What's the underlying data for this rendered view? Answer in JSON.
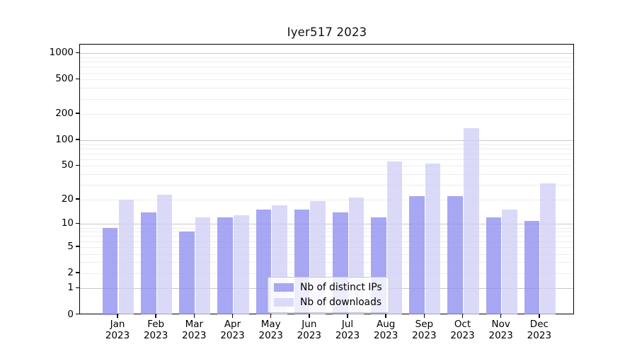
{
  "title": "Iyer517 2023",
  "chart_data": {
    "type": "bar",
    "title": "Iyer517 2023",
    "xlabel": "",
    "ylabel": "",
    "scale": "log10(1+x)",
    "grid": true,
    "legend_position": "lower center",
    "ylim": [
      0,
      1270
    ],
    "y_ticks": [
      0,
      1,
      2,
      5,
      10,
      20,
      50,
      100,
      200,
      500,
      1000
    ],
    "categories": [
      "Jan",
      "Feb",
      "Mar",
      "Apr",
      "May",
      "Jun",
      "Jul",
      "Aug",
      "Sep",
      "Oct",
      "Nov",
      "Dec"
    ],
    "year_label": "2023",
    "series": [
      {
        "name": "Nb of distinct IPs",
        "color": "rgba(145,145,240,0.80)",
        "legend_color": "#a7a7f3",
        "values": [
          9,
          14,
          8,
          12,
          15,
          15,
          14,
          12,
          22,
          22,
          12,
          11
        ]
      },
      {
        "name": "Nb of downloads",
        "color": "rgba(208,208,246,0.78)",
        "legend_color": "#dadaf8",
        "values": [
          20,
          23,
          12,
          13,
          17,
          19,
          21,
          57,
          53,
          138,
          15,
          31
        ]
      }
    ]
  },
  "colors": {
    "major_grid": "#c8c8c8",
    "minor_grid": "#ededed",
    "axis": "#000000",
    "background": "#ffffff"
  }
}
